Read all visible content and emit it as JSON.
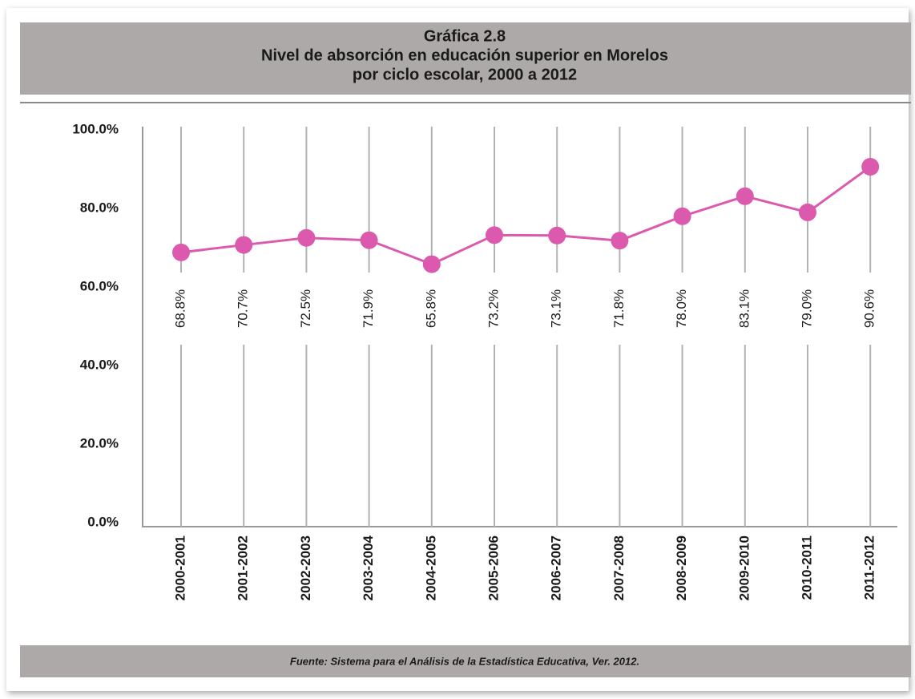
{
  "chart_data": {
    "type": "line",
    "title": [
      "Gráfica 2.8",
      "Nivel de absorción en educación superior en Morelos",
      "por ciclo escolar, 2000 a 2012"
    ],
    "source": "Fuente: Sistema para el Análisis de la Estadística Educativa, Ver. 2012.",
    "categories": [
      "2000-2001",
      "2001-2002",
      "2002-2003",
      "2003-2004",
      "2004-2005",
      "2005-2006",
      "2006-2007",
      "2007-2008",
      "2008-2009",
      "2009-2010",
      "2010-2011",
      "2011-2012"
    ],
    "values": [
      68.8,
      70.7,
      72.5,
      71.9,
      65.8,
      73.2,
      73.1,
      71.8,
      78.0,
      83.1,
      79.0,
      90.6
    ],
    "value_labels": [
      "68.8%",
      "70.7%",
      "72.5%",
      "71.9%",
      "65.8%",
      "73.2%",
      "73.1%",
      "71.8%",
      "78.0%",
      "83.1%",
      "79.0%",
      "90.6%"
    ],
    "color": "#dc5aae",
    "ylim": [
      0,
      100
    ],
    "yticks": [
      {
        "value": 0,
        "label": "0.0%"
      },
      {
        "value": 20,
        "label": "20.0%"
      },
      {
        "value": 40,
        "label": "40.0%"
      },
      {
        "value": 60,
        "label": "60.0%"
      },
      {
        "value": 80,
        "label": "80.0%"
      },
      {
        "value": 100,
        "label": "100.0%"
      }
    ],
    "grid": true
  }
}
